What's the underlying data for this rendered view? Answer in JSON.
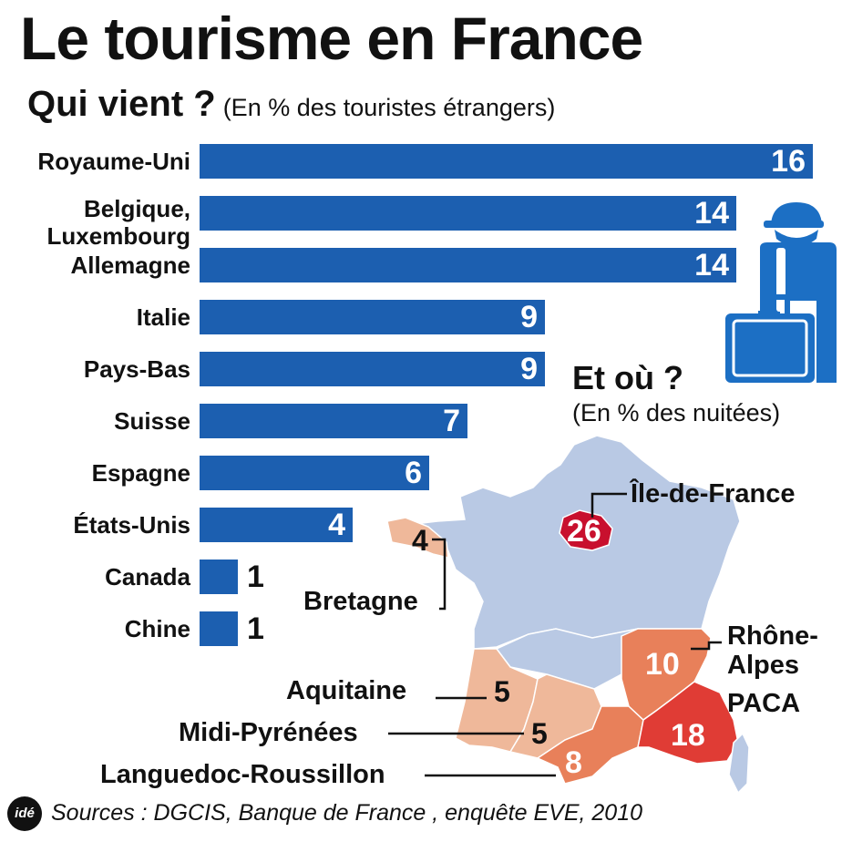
{
  "header": {
    "title": "Le tourisme en France",
    "subtitle_strong": "Qui vient ?",
    "subtitle_note": "(En % des touristes étrangers)"
  },
  "chart_data": [
    {
      "type": "bar",
      "orientation": "horizontal",
      "title": "Qui vient ?",
      "subtitle": "(En % des touristes étrangers)",
      "categories": [
        "Royaume-Uni",
        "Belgique, Luxembourg",
        "Allemagne",
        "Italie",
        "Pays-Bas",
        "Suisse",
        "Espagne",
        "États-Unis",
        "Canada",
        "Chine"
      ],
      "label_lines": [
        [
          "Royaume-Uni"
        ],
        [
          "Belgique,",
          "Luxembourg"
        ],
        [
          "Allemagne"
        ],
        [
          "Italie"
        ],
        [
          "Pays-Bas"
        ],
        [
          "Suisse"
        ],
        [
          "Espagne"
        ],
        [
          "États-Unis"
        ],
        [
          "Canada"
        ],
        [
          "Chine"
        ]
      ],
      "values": [
        16,
        14,
        14,
        9,
        9,
        7,
        6,
        4,
        1,
        1
      ],
      "xlim": [
        0,
        16
      ],
      "color": "#1c5fb0"
    },
    {
      "type": "map",
      "title": "Et où ?",
      "subtitle": "(En % des nuitées)",
      "regions": [
        {
          "name": "Île-de-France",
          "value": 26
        },
        {
          "name": "Bretagne",
          "value": 4
        },
        {
          "name": "Rhône-Alpes",
          "value": 10
        },
        {
          "name": "PACA",
          "value": 18
        },
        {
          "name": "Aquitaine",
          "value": 5
        },
        {
          "name": "Midi-Pyrénées",
          "value": 5
        },
        {
          "name": "Languedoc-Roussillon",
          "value": 8
        }
      ]
    }
  ],
  "map": {
    "title": "Et où ?",
    "note": "(En % des nuitées)",
    "labels": {
      "idf": "Île-de-France",
      "bretagne": "Bretagne",
      "rhone1": "Rhône-",
      "rhone2": "Alpes",
      "paca": "PACA",
      "aquitaine": "Aquitaine",
      "midi": "Midi-Pyrénées",
      "languedoc": "Languedoc-Roussillon"
    },
    "colors": {
      "base": "#b9c9e4",
      "border": "#ffffff",
      "light": "#efb89a",
      "medium": "#e8805a",
      "strong": "#e03c35",
      "top": "#c8102e",
      "icon": "#1c6fc4"
    }
  },
  "footer": {
    "logo": "idé",
    "sources": "Sources : DGCIS, Banque de France , enquête EVE, 2010"
  }
}
